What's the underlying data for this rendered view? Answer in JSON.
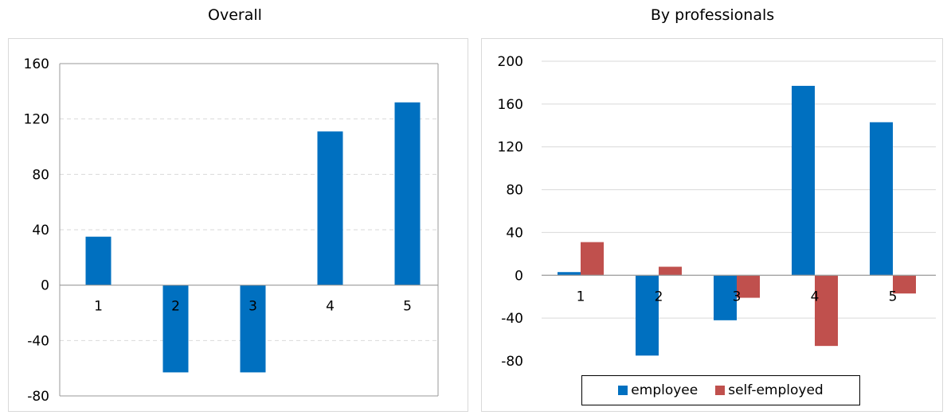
{
  "chart_data": [
    {
      "type": "bar",
      "title": "Overall",
      "categories": [
        "1",
        "2",
        "3",
        "4",
        "5"
      ],
      "series": [
        {
          "values": [
            35,
            -63,
            -63,
            111,
            132
          ],
          "color": "#0070c0"
        }
      ],
      "yticks": [
        "160",
        "120",
        "80",
        "40",
        "0",
        "-40",
        "-80"
      ],
      "ylim": [
        -80,
        160
      ],
      "grid": true
    },
    {
      "type": "bar",
      "title": "By professionals",
      "categories": [
        "1",
        "2",
        "3",
        "4",
        "5"
      ],
      "series": [
        {
          "name": "employee",
          "values": [
            3,
            -75,
            -42,
            177,
            143
          ],
          "color": "#0070c0"
        },
        {
          "name": "self-employed",
          "values": [
            31,
            8,
            -21,
            -66,
            -17
          ],
          "color": "#c0504d"
        }
      ],
      "yticks": [
        "200",
        "160",
        "120",
        "80",
        "40",
        "0",
        "-40",
        "-80"
      ],
      "ylim": [
        -80,
        200
      ],
      "grid": true,
      "legend": "bottom"
    }
  ]
}
